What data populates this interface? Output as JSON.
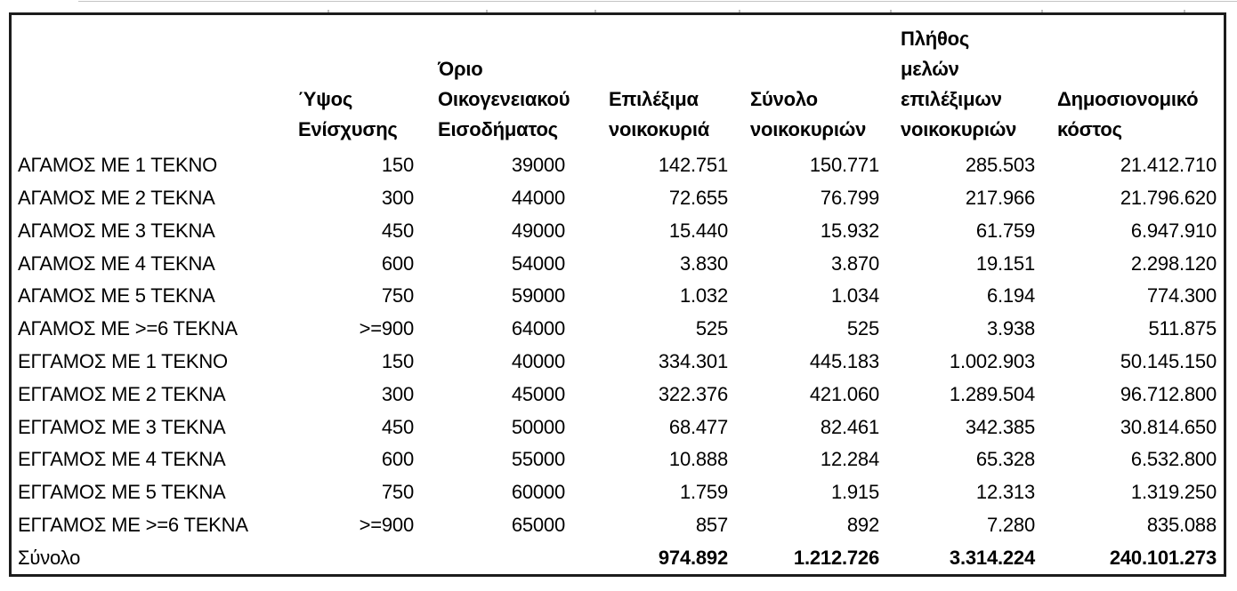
{
  "colors": {
    "background": "#ffffff",
    "border": "#1c1c1c",
    "text": "#000000"
  },
  "chart_data": {
    "type": "table",
    "columns": [
      {
        "label": ""
      },
      {
        "label": "Ύψος\nΕνίσχυσης"
      },
      {
        "label": "Όριο\nΟικογενειακού\nΕισοδήματος"
      },
      {
        "label": "Επιλέξιμα\nνοικοκυριά"
      },
      {
        "label": "Σύνολο\nνοικοκυριών"
      },
      {
        "label": "Πλήθος\nμελών\nεπιλέξιμων\nνοικοκυριών"
      },
      {
        "label": "Δημοσιονομικό\nκόστος"
      }
    ],
    "rows": [
      {
        "label": "ΑΓΑΜΟΣ ΜΕ 1 ΤΕΚΝΟ",
        "values": [
          "150",
          "39000",
          "142.751",
          "150.771",
          "285.503",
          "21.412.710"
        ]
      },
      {
        "label": "ΑΓΑΜΟΣ ΜΕ 2 ΤΕΚΝΑ",
        "values": [
          "300",
          "44000",
          "72.655",
          "76.799",
          "217.966",
          "21.796.620"
        ]
      },
      {
        "label": "ΑΓΑΜΟΣ ΜΕ 3 ΤΕΚΝΑ",
        "values": [
          "450",
          "49000",
          "15.440",
          "15.932",
          "61.759",
          "6.947.910"
        ]
      },
      {
        "label": "ΑΓΑΜΟΣ ΜΕ 4 ΤΕΚΝΑ",
        "values": [
          "600",
          "54000",
          "3.830",
          "3.870",
          "19.151",
          "2.298.120"
        ]
      },
      {
        "label": "ΑΓΑΜΟΣ ΜΕ 5 ΤΕΚΝΑ",
        "values": [
          "750",
          "59000",
          "1.032",
          "1.034",
          "6.194",
          "774.300"
        ]
      },
      {
        "label": "ΑΓΑΜΟΣ ΜΕ >=6 ΤΕΚΝΑ",
        "values": [
          ">=900",
          "64000",
          "525",
          "525",
          "3.938",
          "511.875"
        ]
      },
      {
        "label": "ΕΓΓΑΜΟΣ ΜΕ 1 ΤΕΚΝΟ",
        "values": [
          "150",
          "40000",
          "334.301",
          "445.183",
          "1.002.903",
          "50.145.150"
        ]
      },
      {
        "label": "ΕΓΓΑΜΟΣ ΜΕ 2 ΤΕΚΝΑ",
        "values": [
          "300",
          "45000",
          "322.376",
          "421.060",
          "1.289.504",
          "96.712.800"
        ]
      },
      {
        "label": "ΕΓΓΑΜΟΣ ΜΕ 3 ΤΕΚΝΑ",
        "values": [
          "450",
          "50000",
          "68.477",
          "82.461",
          "342.385",
          "30.814.650"
        ]
      },
      {
        "label": "ΕΓΓΑΜΟΣ ΜΕ 4 ΤΕΚΝΑ",
        "values": [
          "600",
          "55000",
          "10.888",
          "12.284",
          "65.328",
          "6.532.800"
        ]
      },
      {
        "label": "ΕΓΓΑΜΟΣ ΜΕ 5 ΤΕΚΝΑ",
        "values": [
          "750",
          "60000",
          "1.759",
          "1.915",
          "12.313",
          "1.319.250"
        ]
      },
      {
        "label": "ΕΓΓΑΜΟΣ ΜΕ >=6 ΤΕΚΝΑ",
        "values": [
          ">=900",
          "65000",
          "857",
          "892",
          "7.280",
          "835.088"
        ]
      }
    ],
    "totals": {
      "label": "Σύνολο",
      "values": [
        "",
        "",
        "974.892",
        "1.212.726",
        "3.314.224",
        "240.101.273"
      ]
    }
  }
}
